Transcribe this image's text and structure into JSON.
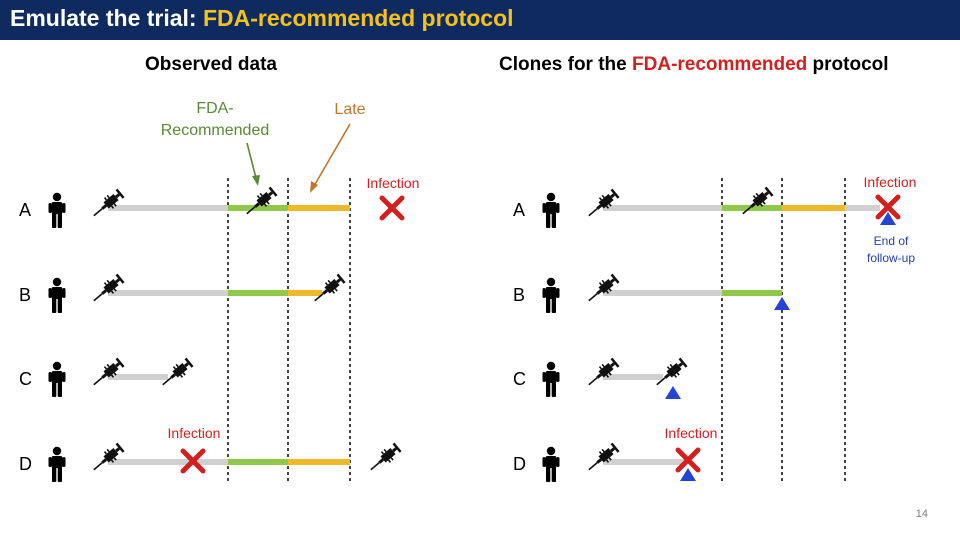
{
  "header": {
    "title_prefix": "Emulate the trial: ",
    "title_highlight": "FDA-recommended protocol"
  },
  "colors": {
    "header_bg": "#0f2a5e",
    "highlight": "#f4c21b",
    "fda_recommended": "#90c94a",
    "late": "#f0b92a",
    "baseline": "#d0d0d0",
    "infection": "#d41f1f",
    "end_marker": "#1f40e0",
    "annotation_green": "#5a8a35",
    "annotation_orange": "#c0772b"
  },
  "left_panel": {
    "title": "Observed data",
    "annotation_fda_line1": "FDA-",
    "annotation_fda_line2": "Recommended",
    "annotation_late": "Late",
    "rows": [
      {
        "label": "A",
        "event_label": "Infection"
      },
      {
        "label": "B"
      },
      {
        "label": "C"
      },
      {
        "label": "D",
        "event_label": "Infection"
      }
    ]
  },
  "right_panel": {
    "title_prefix": "Clones for the ",
    "title_highlight": "FDA-recommended",
    "title_suffix": " protocol",
    "end_label_line1": "End of",
    "end_label_line2": "follow-up",
    "rows": [
      {
        "label": "A",
        "event_label": "Infection"
      },
      {
        "label": "B"
      },
      {
        "label": "C"
      },
      {
        "label": "D",
        "event_label": "Infection"
      }
    ]
  },
  "footer": {
    "slide_number": "14"
  }
}
